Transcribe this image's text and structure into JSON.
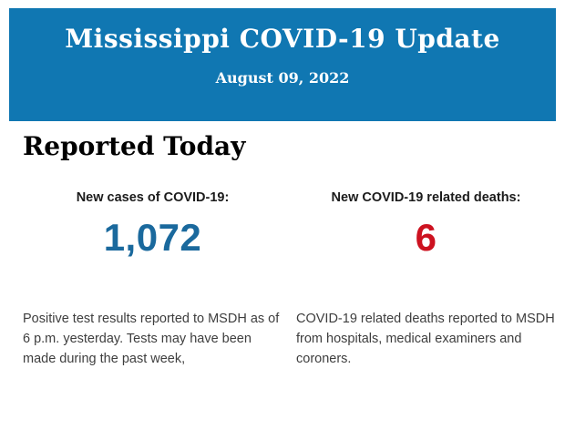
{
  "banner": {
    "title": "Mississippi COVID-19 Update",
    "date": "August 09, 2022",
    "background_color": "#1077b2",
    "text_color": "#ffffff"
  },
  "reported_today": {
    "heading": "Reported Today",
    "stats": [
      {
        "label": "New cases of COVID-19:",
        "value": "1,072",
        "value_color": "#1a699d",
        "description": "Positive test results reported to MSDH as of 6 p.m. yesterday. Tests may have been made during the past week,"
      },
      {
        "label": "New COVID-19 related deaths:",
        "value": "6",
        "value_color": "#cd1220",
        "description": "COVID-19 related deaths reported to MSDH from hospitals, medical examiners and coroners."
      }
    ]
  }
}
